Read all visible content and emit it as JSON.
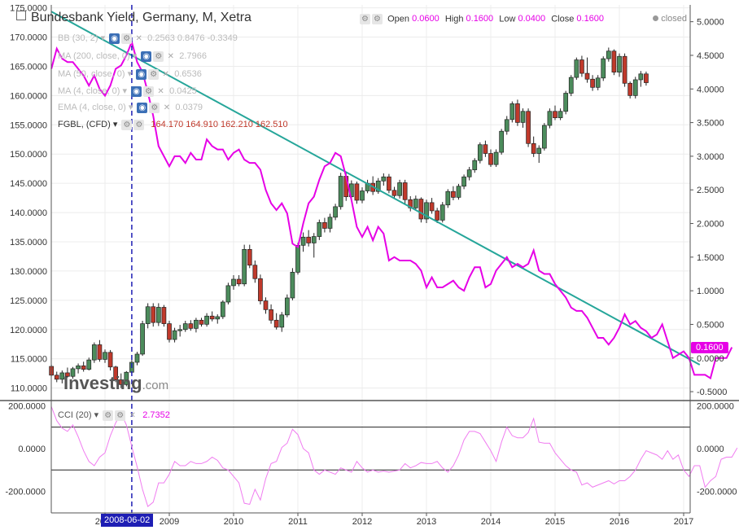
{
  "title": "Bundesbank Yield, Germany, M, Xetra",
  "ohlc": {
    "open_label": "Open",
    "open": "0.0600",
    "high_label": "High",
    "high": "0.1600",
    "low_label": "Low",
    "low": "0.0400",
    "close_label": "Close",
    "close": "0.1600"
  },
  "status": "closed",
  "indicators": [
    {
      "label": "BB (30, 2)",
      "values": "0.2563  0.8476  -0.3349"
    },
    {
      "label": "MA (200, close, 0)",
      "values": "2.7966"
    },
    {
      "label": "MA (50, close, 0)",
      "values": "0.6536"
    },
    {
      "label": "MA (4, close, 0)",
      "values": "0.0425"
    },
    {
      "label": "EMA (4, close, 0)",
      "values": "0.0379"
    }
  ],
  "fgbl": {
    "label": "FGBL, (CFD)",
    "values": "164.170  164.910  162.210  162.510"
  },
  "cci": {
    "label": "CCI (20)",
    "value": "2.7352"
  },
  "price_tag": "0.1600",
  "date_tag": "2008-06-02",
  "logo": {
    "main": "Investing",
    "suffix": ".com"
  },
  "colors": {
    "yield": "#e600e6",
    "trend": "#26a69a",
    "up": "#4c8c5c",
    "down": "#c0392b",
    "cursor": "#1e1eb4"
  },
  "chart_data": {
    "type": "line",
    "x_ticks": [
      "2008",
      "2009",
      "2010",
      "2011",
      "2012",
      "2013",
      "2014",
      "2015",
      "2016",
      "2017"
    ],
    "left_axis_ticks": [
      "175.0000",
      "170.0000",
      "165.0000",
      "160.0000",
      "155.0000",
      "150.0000",
      "145.0000",
      "140.0000",
      "135.0000",
      "130.0000",
      "125.0000",
      "120.0000",
      "115.0000",
      "110.0000"
    ],
    "right_axis_ticks": [
      "5.0000",
      "4.5000",
      "4.0000",
      "3.5000",
      "3.0000",
      "2.5000",
      "2.0000",
      "1.5000",
      "1.0000",
      "0.5000",
      "0.0000",
      "-0.5000"
    ],
    "cci_axis_ticks": [
      "200.0000",
      "0.0000",
      "-200.0000"
    ],
    "left_ylim": [
      108,
      175.5
    ],
    "right_ylim": [
      -0.62,
      5.25
    ],
    "cci_ylim": [
      -300,
      220
    ],
    "cci_levels": [
      100,
      -100
    ],
    "trendline": {
      "start": [
        "2007-03",
        5.15
      ],
      "end": [
        "2017-04",
        -0.1
      ]
    },
    "cursor_date": "2008-06",
    "series": [
      {
        "name": "Bundesbank Yield",
        "axis": "right",
        "start": "2007-03",
        "values": [
          4.3,
          4.6,
          4.45,
          4.4,
          4.4,
          4.3,
          4.2,
          4.05,
          4.2,
          4.0,
          3.9,
          4.05,
          4.3,
          4.35,
          4.5,
          4.7,
          4.4,
          4.25,
          3.95,
          3.6,
          3.15,
          3.0,
          2.85,
          3.0,
          3.0,
          2.9,
          3.05,
          2.95,
          2.95,
          3.25,
          3.15,
          3.1,
          3.1,
          2.95,
          3.05,
          3.1,
          2.95,
          2.9,
          2.9,
          2.8,
          2.5,
          2.3,
          2.2,
          2.3,
          2.15,
          1.7,
          1.65,
          2.0,
          2.3,
          2.4,
          2.65,
          2.85,
          2.9,
          3.05,
          3.0,
          2.7,
          2.35,
          1.95,
          1.8,
          1.95,
          1.75,
          1.95,
          1.85,
          1.45,
          1.5,
          1.45,
          1.45,
          1.45,
          1.4,
          1.3,
          1.05,
          1.2,
          1.05,
          1.05,
          1.1,
          1.15,
          1.05,
          1.0,
          1.2,
          1.35,
          1.35,
          1.05,
          1.1,
          1.3,
          1.4,
          1.5,
          1.35,
          1.4,
          1.35,
          1.4,
          1.6,
          1.3,
          1.25,
          1.25,
          1.1,
          1.0,
          0.9,
          0.75,
          0.7,
          0.7,
          0.6,
          0.45,
          0.3,
          0.3,
          0.2,
          0.3,
          0.45,
          0.65,
          0.5,
          0.55,
          0.45,
          0.4,
          0.3,
          0.35,
          0.5,
          0.25,
          0.0,
          0.05,
          0.1,
          0.0,
          -0.25,
          -0.25,
          -0.25,
          -0.3,
          0.0,
          0.0,
          0.0,
          0.16
        ]
      }
    ],
    "candles": {
      "name": "FGBL, (CFD)",
      "axis": "left",
      "start": "2007-03",
      "ohlc": [
        [
          113.7,
          114.0,
          112.0,
          112.2
        ],
        [
          112.2,
          112.8,
          111.0,
          111.5
        ],
        [
          111.5,
          113.0,
          110.8,
          112.6
        ],
        [
          112.6,
          113.5,
          111.8,
          112.0
        ],
        [
          112.0,
          113.6,
          111.6,
          113.3
        ],
        [
          113.3,
          114.2,
          112.5,
          113.8
        ],
        [
          113.8,
          114.5,
          112.8,
          113.2
        ],
        [
          113.2,
          115.2,
          113.0,
          114.8
        ],
        [
          114.8,
          117.8,
          114.3,
          117.4
        ],
        [
          117.4,
          118.2,
          114.5,
          114.9
        ],
        [
          114.9,
          116.6,
          114.3,
          116.1
        ],
        [
          116.1,
          116.5,
          113.0,
          113.6
        ],
        [
          113.6,
          113.8,
          111.0,
          111.4
        ],
        [
          111.4,
          112.5,
          110.0,
          110.6
        ],
        [
          110.6,
          112.9,
          110.3,
          112.7
        ],
        [
          112.7,
          114.8,
          112.4,
          114.4
        ],
        [
          114.4,
          116.2,
          113.9,
          115.8
        ],
        [
          115.8,
          121.5,
          115.5,
          121.0
        ],
        [
          121.0,
          124.5,
          120.2,
          123.9
        ],
        [
          123.9,
          124.5,
          120.5,
          121.2
        ],
        [
          121.2,
          124.5,
          120.6,
          123.8
        ],
        [
          123.8,
          124.2,
          120.5,
          121.0
        ],
        [
          121.0,
          121.5,
          117.8,
          118.3
        ],
        [
          118.3,
          120.3,
          117.8,
          119.8
        ],
        [
          119.8,
          120.8,
          118.8,
          120.0
        ],
        [
          120.0,
          121.5,
          119.6,
          121.0
        ],
        [
          121.0,
          121.6,
          119.8,
          120.2
        ],
        [
          120.2,
          122.0,
          119.5,
          121.6
        ],
        [
          121.6,
          122.0,
          120.5,
          120.9
        ],
        [
          120.9,
          122.8,
          120.5,
          122.3
        ],
        [
          122.3,
          123.1,
          121.4,
          121.8
        ],
        [
          121.8,
          122.6,
          121.0,
          122.2
        ],
        [
          122.2,
          125.0,
          121.8,
          124.7
        ],
        [
          124.7,
          128.0,
          124.3,
          127.5
        ],
        [
          127.5,
          129.3,
          126.8,
          128.6
        ],
        [
          128.6,
          129.3,
          127.4,
          127.8
        ],
        [
          127.8,
          134.5,
          127.4,
          133.7
        ],
        [
          133.7,
          134.5,
          130.5,
          131.0
        ],
        [
          131.0,
          131.8,
          128.0,
          128.7
        ],
        [
          128.7,
          129.4,
          124.3,
          124.9
        ],
        [
          124.9,
          125.5,
          122.7,
          123.4
        ],
        [
          123.4,
          124.3,
          121.0,
          121.6
        ],
        [
          121.6,
          122.8,
          120.0,
          120.4
        ],
        [
          120.4,
          123.0,
          119.6,
          122.5
        ],
        [
          122.5,
          126.0,
          122.1,
          125.4
        ],
        [
          125.4,
          130.5,
          125.0,
          129.8
        ],
        [
          129.8,
          134.8,
          129.4,
          134.4
        ],
        [
          134.4,
          136.6,
          133.3,
          135.8
        ],
        [
          135.8,
          137.0,
          134.2,
          134.8
        ],
        [
          134.8,
          136.5,
          132.3,
          135.9
        ],
        [
          135.9,
          138.8,
          135.3,
          138.3
        ],
        [
          138.3,
          139.1,
          136.6,
          137.3
        ],
        [
          137.3,
          139.8,
          136.6,
          139.2
        ],
        [
          139.2,
          141.5,
          138.7,
          141.0
        ],
        [
          141.0,
          146.8,
          140.5,
          146.2
        ],
        [
          146.2,
          146.8,
          142.0,
          142.7
        ],
        [
          142.7,
          145.5,
          142.0,
          144.9
        ],
        [
          144.9,
          145.3,
          141.5,
          142.1
        ],
        [
          142.1,
          144.3,
          141.6,
          143.7
        ],
        [
          143.7,
          145.6,
          143.3,
          145.0
        ],
        [
          145.0,
          146.2,
          143.0,
          143.6
        ],
        [
          143.6,
          145.9,
          143.2,
          145.4
        ],
        [
          145.4,
          146.7,
          144.6,
          146.1
        ],
        [
          146.1,
          146.6,
          143.3,
          143.8
        ],
        [
          143.8,
          144.4,
          142.3,
          142.9
        ],
        [
          142.9,
          145.6,
          142.4,
          145.1
        ],
        [
          145.1,
          145.6,
          141.5,
          142.2
        ],
        [
          142.2,
          142.8,
          140.2,
          140.8
        ],
        [
          140.8,
          142.9,
          140.3,
          142.3
        ],
        [
          142.3,
          142.6,
          138.3,
          138.9
        ],
        [
          138.9,
          142.2,
          138.2,
          141.7
        ],
        [
          141.7,
          142.5,
          139.8,
          140.3
        ],
        [
          140.3,
          140.8,
          138.2,
          138.7
        ],
        [
          138.7,
          141.8,
          138.3,
          141.3
        ],
        [
          141.3,
          144.0,
          140.8,
          143.6
        ],
        [
          143.6,
          144.5,
          142.1,
          142.6
        ],
        [
          142.6,
          144.9,
          142.2,
          144.5
        ],
        [
          144.5,
          146.5,
          144.0,
          146.1
        ],
        [
          146.1,
          147.8,
          145.5,
          147.3
        ],
        [
          147.3,
          149.3,
          146.8,
          148.9
        ],
        [
          148.9,
          152.0,
          148.4,
          151.6
        ],
        [
          151.6,
          152.3,
          149.5,
          150.1
        ],
        [
          150.1,
          150.8,
          147.8,
          148.2
        ],
        [
          148.2,
          150.8,
          147.8,
          150.3
        ],
        [
          150.3,
          154.3,
          149.9,
          153.9
        ],
        [
          153.9,
          156.5,
          153.3,
          155.9
        ],
        [
          155.9,
          159.0,
          155.4,
          158.6
        ],
        [
          158.6,
          159.3,
          154.8,
          155.4
        ],
        [
          155.4,
          157.8,
          154.5,
          157.3
        ],
        [
          157.3,
          157.8,
          151.2,
          151.8
        ],
        [
          151.8,
          153.0,
          149.5,
          150.1
        ],
        [
          150.1,
          151.5,
          148.5,
          151.0
        ],
        [
          151.0,
          155.3,
          150.6,
          154.9
        ],
        [
          154.9,
          157.8,
          154.4,
          157.3
        ],
        [
          157.3,
          158.3,
          155.8,
          156.2
        ],
        [
          156.2,
          157.8,
          155.8,
          157.3
        ],
        [
          157.3,
          160.8,
          156.8,
          160.4
        ],
        [
          160.4,
          163.5,
          159.9,
          163.1
        ],
        [
          163.1,
          166.5,
          162.7,
          166.1
        ],
        [
          166.1,
          166.8,
          163.2,
          163.8
        ],
        [
          163.8,
          166.5,
          162.2,
          162.8
        ],
        [
          162.8,
          163.5,
          160.8,
          161.4
        ],
        [
          161.4,
          163.5,
          160.9,
          163.0
        ],
        [
          163.0,
          166.7,
          162.5,
          166.3
        ],
        [
          166.3,
          168.2,
          165.8,
          167.6
        ],
        [
          167.6,
          167.9,
          163.5,
          164.0
        ],
        [
          164.0,
          167.2,
          163.2,
          166.7
        ],
        [
          166.7,
          167.2,
          161.5,
          162.1
        ],
        [
          162.1,
          162.4,
          159.5,
          160.0
        ],
        [
          160.0,
          163.2,
          159.5,
          162.7
        ],
        [
          162.7,
          164.2,
          161.5,
          163.7
        ],
        [
          163.7,
          164.1,
          161.7,
          162.2
        ]
      ]
    },
    "cci": {
      "name": "CCI (20)",
      "start": "2007-03",
      "values": [
        195,
        130,
        95,
        80,
        110,
        55,
        -10,
        -60,
        -80,
        -40,
        -20,
        60,
        120,
        165,
        110,
        10,
        -85,
        -190,
        -270,
        -250,
        -160,
        -160,
        -120,
        -60,
        -80,
        -80,
        -60,
        -70,
        -70,
        -60,
        -40,
        -55,
        -90,
        -100,
        -130,
        -160,
        -255,
        -260,
        -190,
        -240,
        -140,
        -70,
        -60,
        5,
        25,
        90,
        65,
        0,
        -20,
        -100,
        -120,
        -100,
        -110,
        -120,
        -90,
        -100,
        -110,
        -60,
        -90,
        -110,
        -100,
        -110,
        -105,
        -110,
        -105,
        -100,
        -70,
        -90,
        -80,
        -65,
        -70,
        -70,
        -60,
        -90,
        -110,
        -80,
        -30,
        40,
        80,
        80,
        70,
        30,
        -10,
        -60,
        30,
        100,
        60,
        50,
        50,
        75,
        140,
        30,
        25,
        25,
        -20,
        -50,
        -80,
        -100,
        -110,
        -170,
        -160,
        -180,
        -170,
        -160,
        -150,
        -165,
        -150,
        -150,
        -130,
        -100,
        -50,
        -10,
        -20,
        -30,
        -50,
        -10,
        -50,
        -30,
        -100,
        -130,
        -80,
        -80,
        -180,
        -150,
        -130,
        -50,
        -40,
        -40,
        3
      ]
    }
  }
}
